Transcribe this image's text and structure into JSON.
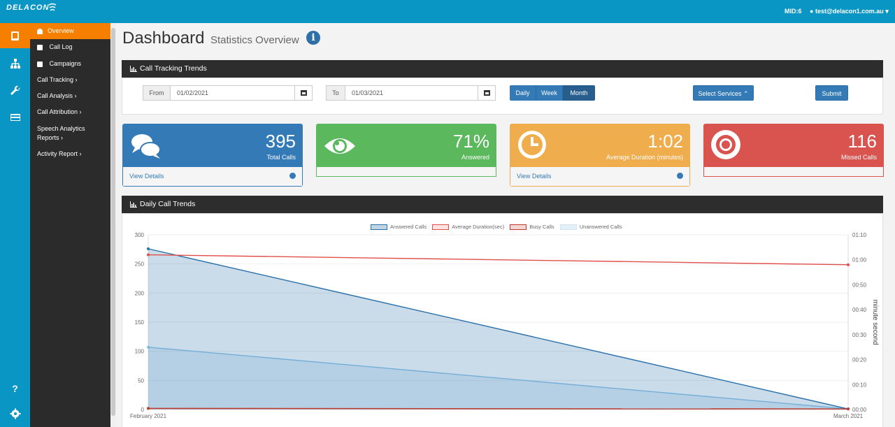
{
  "topbar": {
    "logo_text": "DELACON",
    "mid_text": "MID:6",
    "user_text": "test@delacon1.com.au"
  },
  "rail": {
    "icons": [
      "book-icon",
      "sitemap-icon",
      "wrench-icon",
      "card-icon"
    ],
    "bottom_icons": [
      "help-icon",
      "gear-icon"
    ]
  },
  "sidebar": {
    "items": [
      {
        "label": "Overview"
      },
      {
        "label": "Call Log"
      },
      {
        "label": "Campaigns"
      },
      {
        "label": "Call Tracking ›"
      },
      {
        "label": "Call Analysis ›"
      },
      {
        "label": "Call Attribution ›"
      },
      {
        "label": "Speech Analytics"
      },
      {
        "label": "Reports ›"
      },
      {
        "label": "Activity Report ›"
      }
    ]
  },
  "page": {
    "title": "Dashboard",
    "subtitle": "Statistics Overview"
  },
  "trends_panel": {
    "title": "Call Tracking Trends",
    "from_label": "From",
    "from_value": "01/02/2021",
    "to_label": "To",
    "to_value": "01/03/2021",
    "periods": [
      "Daily",
      "Week",
      "Month"
    ],
    "active_period": "Month",
    "select_services": "Select Services ⌃",
    "submit": "Submit"
  },
  "stats": [
    {
      "value": "395",
      "label": "Total Calls",
      "footer": "View Details",
      "color": "#337ab7",
      "icon": "comments-icon"
    },
    {
      "value": "71%",
      "label": "Answered",
      "footer": "",
      "color": "#5cb85c",
      "icon": "eye-icon"
    },
    {
      "value": "1:02",
      "label": "Average Duration (minutes)",
      "footer": "View Details",
      "color": "#f0ad4e",
      "icon": "clock-icon"
    },
    {
      "value": "116",
      "label": "Missed Calls",
      "footer": "",
      "color": "#d9534f",
      "icon": "lifebuoy-icon"
    }
  ],
  "daily_panel": {
    "title": "Daily Call Trends"
  },
  "chart_data": {
    "type": "area",
    "x": [
      "February 2021",
      "March 2021"
    ],
    "series": [
      {
        "name": "Answered Calls",
        "values": [
          276,
          1
        ],
        "color": "#2a6fa8",
        "fill": "rgba(42,111,168,0.25)"
      },
      {
        "name": "Average Duration(sec)",
        "values": [
          62,
          58
        ],
        "color": "#e0504b",
        "fill": "rgba(224,80,75,0.1)",
        "axis": "right"
      },
      {
        "name": "Busy Calls",
        "values": [
          2,
          1
        ],
        "color": "#c0392b",
        "fill": "rgba(192,57,43,0.15)"
      },
      {
        "name": "Unanswered Calls",
        "values": [
          107,
          1
        ],
        "color": "#8ec3e8",
        "fill": "rgba(142,195,232,0.25)"
      }
    ],
    "y_left": {
      "ticks": [
        0,
        50,
        100,
        150,
        200,
        250,
        300
      ],
      "ylim": [
        0,
        300
      ]
    },
    "y_right": {
      "ticks": [
        "00:00",
        "00:10",
        "00:20",
        "00:30",
        "00:40",
        "00:50",
        "01:00",
        "01:10"
      ],
      "ylim": [
        0,
        70
      ],
      "label": "minute second"
    },
    "grid": true,
    "legend_position": "top"
  }
}
